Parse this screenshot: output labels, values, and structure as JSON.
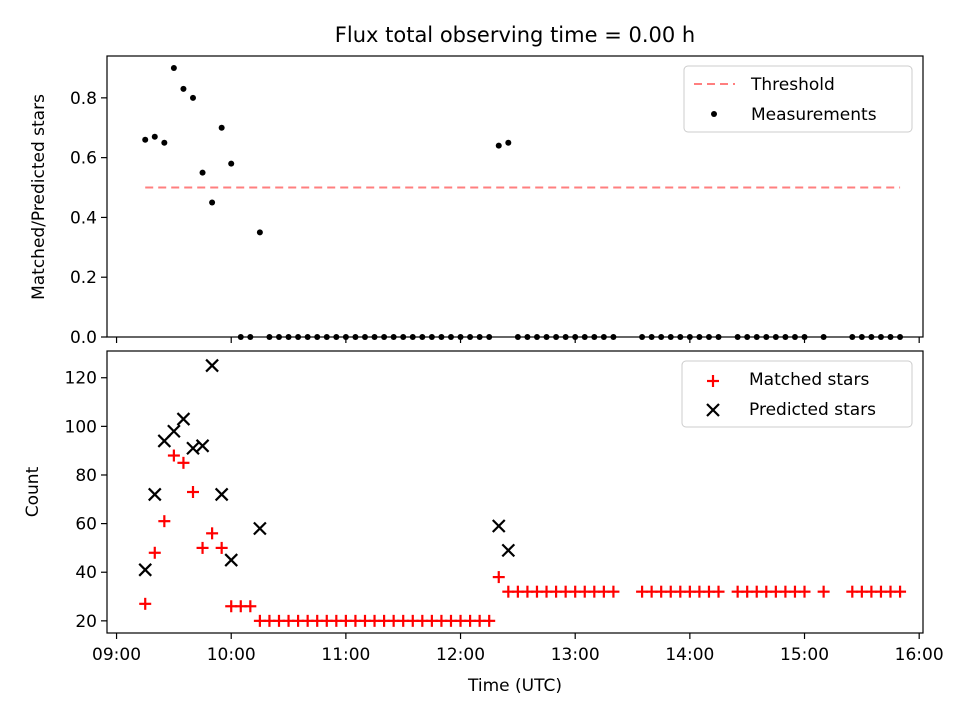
{
  "figure_title": "Flux total observing time = 0.00 h",
  "chart_data": [
    {
      "type": "scatter",
      "ylabel": "Matched/Predicted stars",
      "xlabel": "",
      "xlim": [
        "08:55",
        "16:02"
      ],
      "ylim": [
        0,
        0.94
      ],
      "yticks": [
        0.0,
        0.2,
        0.4,
        0.6,
        0.8
      ],
      "ytick_labels": [
        "0.0",
        "0.2",
        "0.4",
        "0.6",
        "0.8"
      ],
      "xtick_labels_visible": false,
      "legend_position": "top-right",
      "threshold": {
        "name": "Threshold",
        "value": 0.5,
        "x_range": [
          "09:15",
          "15:50"
        ],
        "color": "#ff7f7f"
      },
      "series": [
        {
          "name": "Measurements",
          "color": "#000000",
          "marker": "dot",
          "points": [
            [
              "09:15",
              0.66
            ],
            [
              "09:20",
              0.67
            ],
            [
              "09:25",
              0.65
            ],
            [
              "09:30",
              0.9
            ],
            [
              "09:35",
              0.83
            ],
            [
              "09:40",
              0.8
            ],
            [
              "09:45",
              0.55
            ],
            [
              "09:50",
              0.45
            ],
            [
              "09:55",
              0.7
            ],
            [
              "10:00",
              0.58
            ],
            [
              "10:05",
              0.0
            ],
            [
              "10:10",
              0.0
            ],
            [
              "10:15",
              0.35
            ],
            [
              "10:20",
              0.0
            ],
            [
              "10:25",
              0.0
            ],
            [
              "10:30",
              0.0
            ],
            [
              "10:35",
              0.0
            ],
            [
              "10:40",
              0.0
            ],
            [
              "10:45",
              0.0
            ],
            [
              "10:50",
              0.0
            ],
            [
              "10:55",
              0.0
            ],
            [
              "11:00",
              0.0
            ],
            [
              "11:05",
              0.0
            ],
            [
              "11:10",
              0.0
            ],
            [
              "11:15",
              0.0
            ],
            [
              "11:20",
              0.0
            ],
            [
              "11:25",
              0.0
            ],
            [
              "11:30",
              0.0
            ],
            [
              "11:35",
              0.0
            ],
            [
              "11:40",
              0.0
            ],
            [
              "11:45",
              0.0
            ],
            [
              "11:50",
              0.0
            ],
            [
              "11:55",
              0.0
            ],
            [
              "12:00",
              0.0
            ],
            [
              "12:05",
              0.0
            ],
            [
              "12:10",
              0.0
            ],
            [
              "12:15",
              0.0
            ],
            [
              "12:20",
              0.64
            ],
            [
              "12:25",
              0.65
            ],
            [
              "12:30",
              0.0
            ],
            [
              "12:35",
              0.0
            ],
            [
              "12:40",
              0.0
            ],
            [
              "12:45",
              0.0
            ],
            [
              "12:50",
              0.0
            ],
            [
              "12:55",
              0.0
            ],
            [
              "13:00",
              0.0
            ],
            [
              "13:05",
              0.0
            ],
            [
              "13:10",
              0.0
            ],
            [
              "13:15",
              0.0
            ],
            [
              "13:20",
              0.0
            ],
            [
              "13:35",
              0.0
            ],
            [
              "13:40",
              0.0
            ],
            [
              "13:45",
              0.0
            ],
            [
              "13:50",
              0.0
            ],
            [
              "13:55",
              0.0
            ],
            [
              "14:00",
              0.0
            ],
            [
              "14:05",
              0.0
            ],
            [
              "14:10",
              0.0
            ],
            [
              "14:15",
              0.0
            ],
            [
              "14:25",
              0.0
            ],
            [
              "14:30",
              0.0
            ],
            [
              "14:35",
              0.0
            ],
            [
              "14:40",
              0.0
            ],
            [
              "14:45",
              0.0
            ],
            [
              "14:50",
              0.0
            ],
            [
              "14:55",
              0.0
            ],
            [
              "15:00",
              0.0
            ],
            [
              "15:10",
              0.0
            ],
            [
              "15:25",
              0.0
            ],
            [
              "15:30",
              0.0
            ],
            [
              "15:35",
              0.0
            ],
            [
              "15:40",
              0.0
            ],
            [
              "15:45",
              0.0
            ],
            [
              "15:50",
              0.0
            ]
          ]
        }
      ]
    },
    {
      "type": "scatter",
      "ylabel": "Count",
      "xlabel": "Time (UTC)",
      "xlim": [
        "08:55",
        "16:02"
      ],
      "ylim": [
        15,
        131
      ],
      "yticks": [
        20,
        40,
        60,
        80,
        100,
        120
      ],
      "ytick_labels": [
        "20",
        "40",
        "60",
        "80",
        "100",
        "120"
      ],
      "xticks": [
        "09:00",
        "10:00",
        "11:00",
        "12:00",
        "13:00",
        "14:00",
        "15:00",
        "16:00"
      ],
      "xtick_labels": [
        "09:00",
        "10:00",
        "11:00",
        "12:00",
        "13:00",
        "14:00",
        "15:00",
        "16:00"
      ],
      "legend_position": "top-right",
      "series": [
        {
          "name": "Matched stars",
          "color": "#ff0000",
          "marker": "plus",
          "points": [
            [
              "09:15",
              27
            ],
            [
              "09:20",
              48
            ],
            [
              "09:25",
              61
            ],
            [
              "09:30",
              88
            ],
            [
              "09:35",
              85
            ],
            [
              "09:40",
              73
            ],
            [
              "09:45",
              50
            ],
            [
              "09:50",
              56
            ],
            [
              "09:55",
              50
            ],
            [
              "10:00",
              26
            ],
            [
              "10:05",
              26
            ],
            [
              "10:10",
              26
            ],
            [
              "10:15",
              20
            ],
            [
              "10:20",
              20
            ],
            [
              "10:25",
              20
            ],
            [
              "10:30",
              20
            ],
            [
              "10:35",
              20
            ],
            [
              "10:40",
              20
            ],
            [
              "10:45",
              20
            ],
            [
              "10:50",
              20
            ],
            [
              "10:55",
              20
            ],
            [
              "11:00",
              20
            ],
            [
              "11:05",
              20
            ],
            [
              "11:10",
              20
            ],
            [
              "11:15",
              20
            ],
            [
              "11:20",
              20
            ],
            [
              "11:25",
              20
            ],
            [
              "11:30",
              20
            ],
            [
              "11:35",
              20
            ],
            [
              "11:40",
              20
            ],
            [
              "11:45",
              20
            ],
            [
              "11:50",
              20
            ],
            [
              "11:55",
              20
            ],
            [
              "12:00",
              20
            ],
            [
              "12:05",
              20
            ],
            [
              "12:10",
              20
            ],
            [
              "12:15",
              20
            ],
            [
              "12:20",
              38
            ],
            [
              "12:25",
              32
            ],
            [
              "12:30",
              32
            ],
            [
              "12:35",
              32
            ],
            [
              "12:40",
              32
            ],
            [
              "12:45",
              32
            ],
            [
              "12:50",
              32
            ],
            [
              "12:55",
              32
            ],
            [
              "13:00",
              32
            ],
            [
              "13:05",
              32
            ],
            [
              "13:10",
              32
            ],
            [
              "13:15",
              32
            ],
            [
              "13:20",
              32
            ],
            [
              "13:35",
              32
            ],
            [
              "13:40",
              32
            ],
            [
              "13:45",
              32
            ],
            [
              "13:50",
              32
            ],
            [
              "13:55",
              32
            ],
            [
              "14:00",
              32
            ],
            [
              "14:05",
              32
            ],
            [
              "14:10",
              32
            ],
            [
              "14:15",
              32
            ],
            [
              "14:25",
              32
            ],
            [
              "14:30",
              32
            ],
            [
              "14:35",
              32
            ],
            [
              "14:40",
              32
            ],
            [
              "14:45",
              32
            ],
            [
              "14:50",
              32
            ],
            [
              "14:55",
              32
            ],
            [
              "15:00",
              32
            ],
            [
              "15:10",
              32
            ],
            [
              "15:25",
              32
            ],
            [
              "15:30",
              32
            ],
            [
              "15:35",
              32
            ],
            [
              "15:40",
              32
            ],
            [
              "15:45",
              32
            ],
            [
              "15:50",
              32
            ]
          ]
        },
        {
          "name": "Predicted stars",
          "color": "#000000",
          "marker": "x",
          "points": [
            [
              "09:15",
              41
            ],
            [
              "09:20",
              72
            ],
            [
              "09:25",
              94
            ],
            [
              "09:30",
              98
            ],
            [
              "09:35",
              103
            ],
            [
              "09:40",
              91
            ],
            [
              "09:45",
              92
            ],
            [
              "09:50",
              125
            ],
            [
              "09:55",
              72
            ],
            [
              "10:00",
              45
            ],
            [
              "10:15",
              58
            ],
            [
              "12:20",
              59
            ],
            [
              "12:25",
              49
            ]
          ]
        }
      ]
    }
  ]
}
